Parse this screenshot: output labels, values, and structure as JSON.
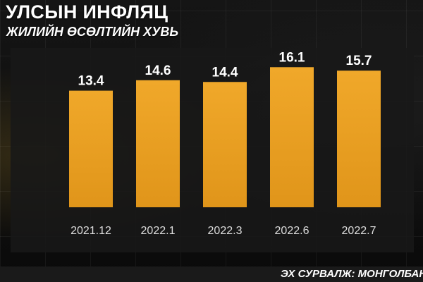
{
  "header": {
    "title": "УЛСЫН ИНФЛЯЦ",
    "subtitle": "ЖИЛИЙН ӨСӨЛТИЙН ХУВЬ"
  },
  "footer": {
    "source": "ЭХ СУРВАЛЖ: МОНГОЛБАНК"
  },
  "colors": {
    "bar": "#e0951a",
    "bar_highlight": "#f0a82a",
    "label": "#ffffff",
    "tick": "#dddddd"
  },
  "chart_data": {
    "type": "bar",
    "title": "УЛСЫН ИНФЛЯЦ",
    "subtitle": "ЖИЛИЙН ӨСӨЛТИЙН ХУВЬ",
    "categories": [
      "2021.12",
      "2022.1",
      "2022.3",
      "2022.6",
      "2022.7"
    ],
    "values": [
      13.4,
      14.6,
      14.4,
      16.1,
      15.7
    ],
    "data_labels": [
      "13.4",
      "14.6",
      "14.4",
      "16.1",
      "15.7"
    ],
    "xlabel": "",
    "ylabel": "",
    "ylim": [
      0,
      17.5
    ],
    "grid": false,
    "legend": "none"
  }
}
